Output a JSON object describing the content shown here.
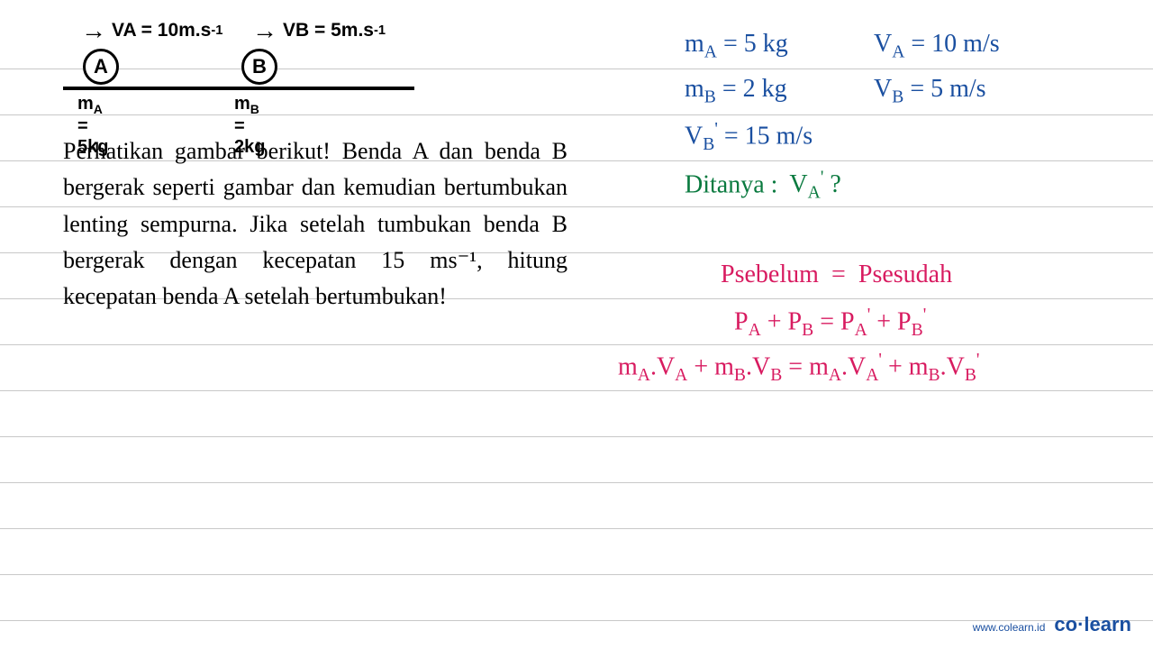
{
  "ruled": {
    "color": "#c8c8c8",
    "positions": [
      76,
      127,
      178,
      229,
      280,
      331,
      382,
      433,
      484,
      535,
      586,
      637,
      688
    ]
  },
  "diagram": {
    "va_label": "VA = 10m.s",
    "va_exp": "-1",
    "vb_label": "VB = 5m.s",
    "vb_exp": "-1",
    "circle_a": "A",
    "circle_b": "B",
    "ma_prefix": "m",
    "ma_sub": "A",
    "ma_rest": " = 5kg",
    "mb_prefix": "m",
    "mb_sub": "B",
    "mb_rest": " = 2kg"
  },
  "problem_text": "Perhatikan gambar berikut! Benda A dan benda B bergerak seperti gambar dan kemudian bertumbukan lenting sempurna. Jika setelah tumbukan benda B bergerak dengan kecepatan 15 ms⁻¹, hitung kecepatan benda A setelah bertumbukan!",
  "notes": {
    "ma": "m",
    "ma_sub": "A",
    "ma_val": " = 5 kg",
    "va": "V",
    "va_sub": "A",
    "va_val": " = 10 m/s",
    "mb": "m",
    "mb_sub": "B",
    "mb_val": " = 2 kg",
    "vb": "V",
    "vb_sub": "B",
    "vb_val": " = 5 m/s",
    "vbp": "V",
    "vbp_sub": "B",
    "vbp_sup": "'",
    "vbp_val": " = 15 m/s",
    "ditanya": "Ditanya :",
    "dit_v": "V",
    "dit_sub": "A",
    "dit_sup": "'",
    "dit_q": " ?",
    "eq1_left": "Psebelum",
    "eq1_eq": "=",
    "eq1_right": "Psesudah",
    "eq2": "P",
    "eq2_asub": "A",
    "eq2_plus": " + P",
    "eq2_bsub": "B",
    "eq2_eq": " = P",
    "eq2_asub2": "A",
    "eq2_prime": "'",
    "eq2_plus2": " + P",
    "eq2_bsub2": "B",
    "eq2_prime2": "'",
    "eq3_ma": "m",
    "eq3_asub": "A",
    "eq3_dot1": ".V",
    "eq3_asub2": "A",
    "eq3_plus": " + m",
    "eq3_bsub": "B",
    "eq3_dot2": ".V",
    "eq3_bsub2": "B",
    "eq3_eq": " = m",
    "eq3_asub3": "A",
    "eq3_dot3": ".V",
    "eq3_asub4": "A",
    "eq3_prime1": "'",
    "eq3_plus2": " + m",
    "eq3_bsub3": "B",
    "eq3_dot4": ".V",
    "eq3_bsub4": "B",
    "eq3_prime2": "'"
  },
  "watermark": {
    "site": "www.colearn.id",
    "brand_a": "co",
    "brand_dot": "·",
    "brand_b": "learn"
  },
  "colors": {
    "blue": "#1a4fa0",
    "green": "#0a7a3f",
    "pink": "#d81b60",
    "line": "#c8c8c8"
  }
}
